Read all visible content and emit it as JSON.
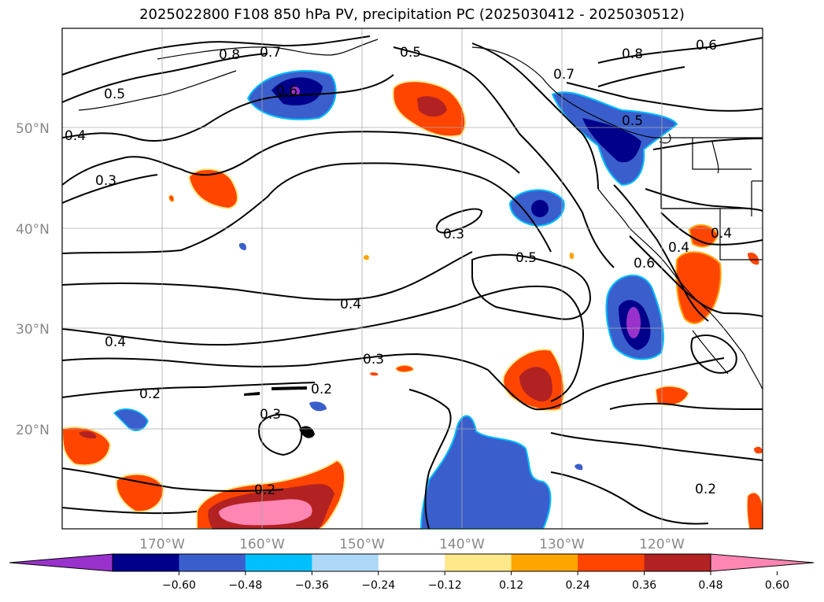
{
  "title": "2025022800 F108 850 hPa PV, precipitation PC (2025030412 - 2025030512)",
  "lat_labels": [
    "50°N",
    "40°N",
    "30°N",
    "20°N"
  ],
  "lon_labels": [
    "170°W",
    "160°W",
    "150°W",
    "140°W",
    "130°W",
    "120°W"
  ],
  "contour_labels": [
    "0.8",
    "0.7",
    "0.5",
    "0.6",
    "0.5",
    "0.8",
    "0.6",
    "0.7",
    "0.5",
    "0.4",
    "0.3",
    "0.5",
    "0.3",
    "0.4",
    "0.3",
    "0.4",
    "0.4",
    "0.2",
    "0.3",
    "0.2",
    "0.2",
    "0.2",
    "0.6",
    "0.4"
  ],
  "colorbar": {
    "ticks": [
      "−0.60",
      "−0.48",
      "−0.36",
      "−0.24",
      "−0.12",
      "0.12",
      "0.24",
      "0.36",
      "0.48",
      "0.60"
    ],
    "colors": [
      "#9932cc",
      "#00008b",
      "#3a5fcd",
      "#00bfff",
      "#add8f7",
      "#ffffff",
      "#ffe88a",
      "#ffa500",
      "#ff4500",
      "#b22222",
      "#ff85b3"
    ]
  }
}
